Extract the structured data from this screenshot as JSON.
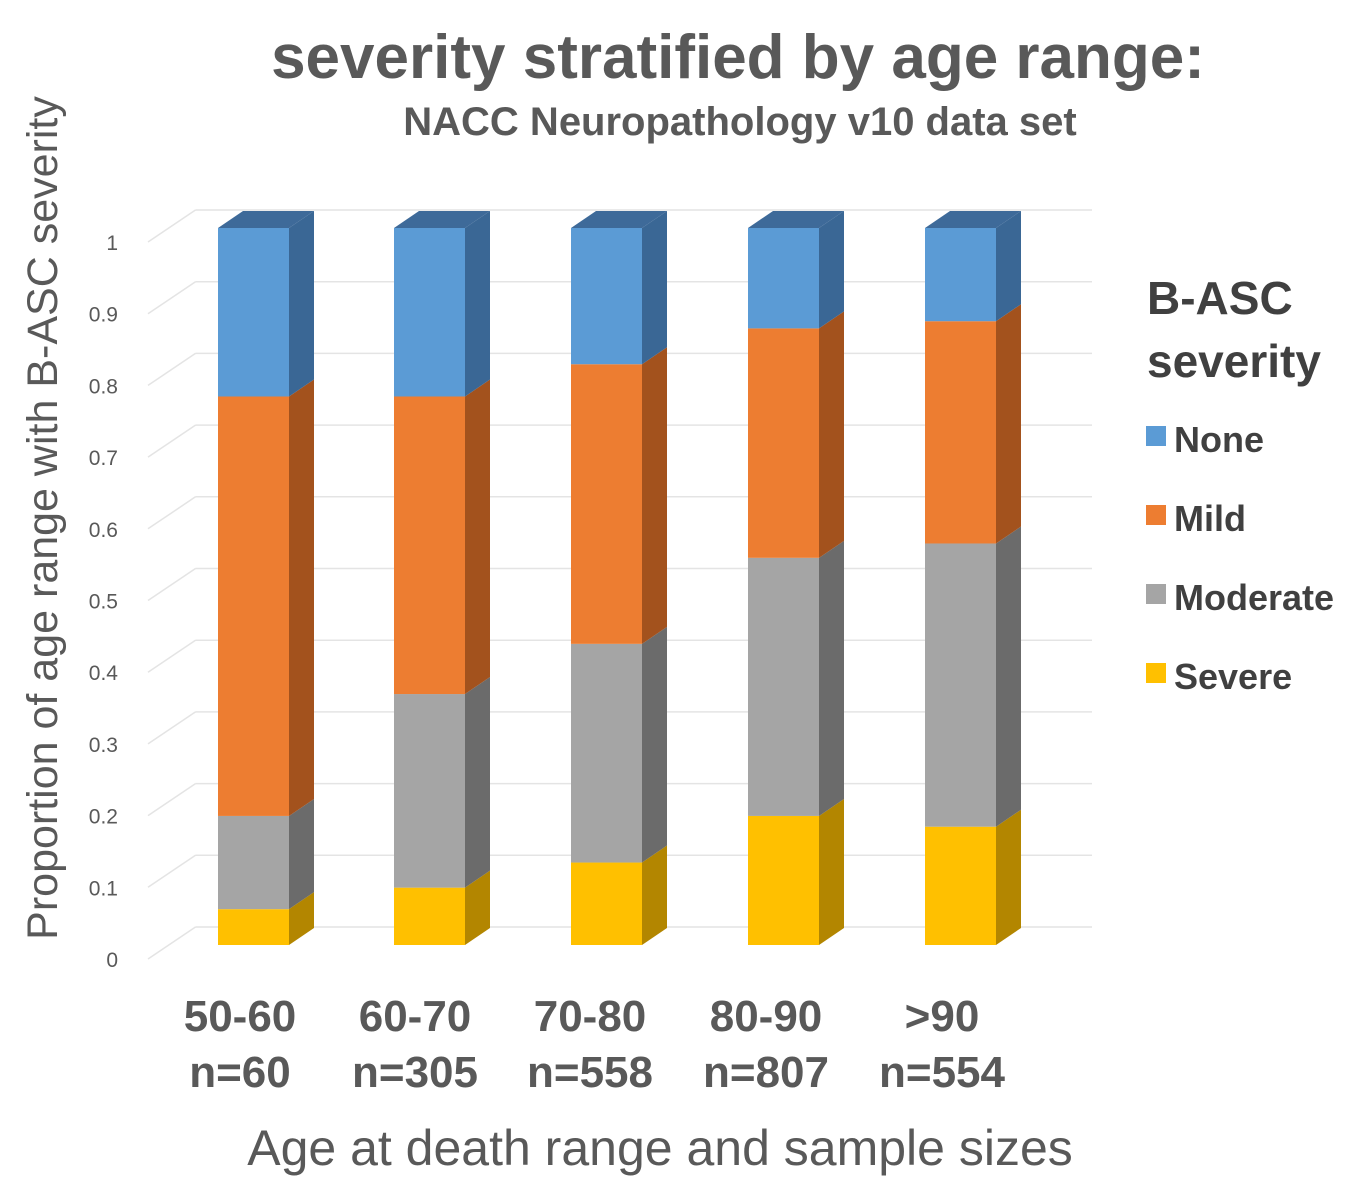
{
  "chart_data": {
    "type": "bar",
    "stacked": true,
    "three_d": true,
    "title_line1": "severity stratified by age range:",
    "subtitle": "NACC Neuropathology v10 data set",
    "xlabel": "Age at death range and sample sizes",
    "ylabel": "Proportion of age range with B-ASC severity",
    "ylim": [
      0,
      1
    ],
    "yticks": [
      "0",
      "0.1",
      "0.2",
      "0.3",
      "0.4",
      "0.5",
      "0.6",
      "0.7",
      "0.8",
      "0.9",
      "1"
    ],
    "categories": [
      {
        "range": "50-60",
        "n": "n=60"
      },
      {
        "range": "60-70",
        "n": "n=305"
      },
      {
        "range": "70-80",
        "n": "n=558"
      },
      {
        "range": "80-90",
        "n": "n=807"
      },
      {
        "range": ">90",
        "n": "n=554"
      }
    ],
    "series": [
      {
        "name": "Severe",
        "color": "#FFC000",
        "side_color": "#B38600",
        "top_color": "#FFD54F",
        "values": [
          0.05,
          0.08,
          0.115,
          0.18,
          0.165
        ]
      },
      {
        "name": "Moderate",
        "color": "#A5A5A5",
        "side_color": "#6B6B6B",
        "top_color": "#BDBDBD",
        "values": [
          0.13,
          0.27,
          0.305,
          0.36,
          0.395
        ]
      },
      {
        "name": "Mild",
        "color": "#ED7D31",
        "side_color": "#A3521D",
        "top_color": "#F29A60",
        "values": [
          0.585,
          0.415,
          0.39,
          0.32,
          0.31
        ]
      },
      {
        "name": "None",
        "color": "#5B9BD5",
        "side_color": "#3A6795",
        "top_color": "#3E6A99",
        "values": [
          0.235,
          0.235,
          0.19,
          0.14,
          0.13
        ]
      }
    ],
    "legend": {
      "title_line1": "B-ASC",
      "title_line2": "severity",
      "position": "right",
      "order": [
        "None",
        "Mild",
        "Moderate",
        "Severe"
      ]
    },
    "grid": true
  }
}
